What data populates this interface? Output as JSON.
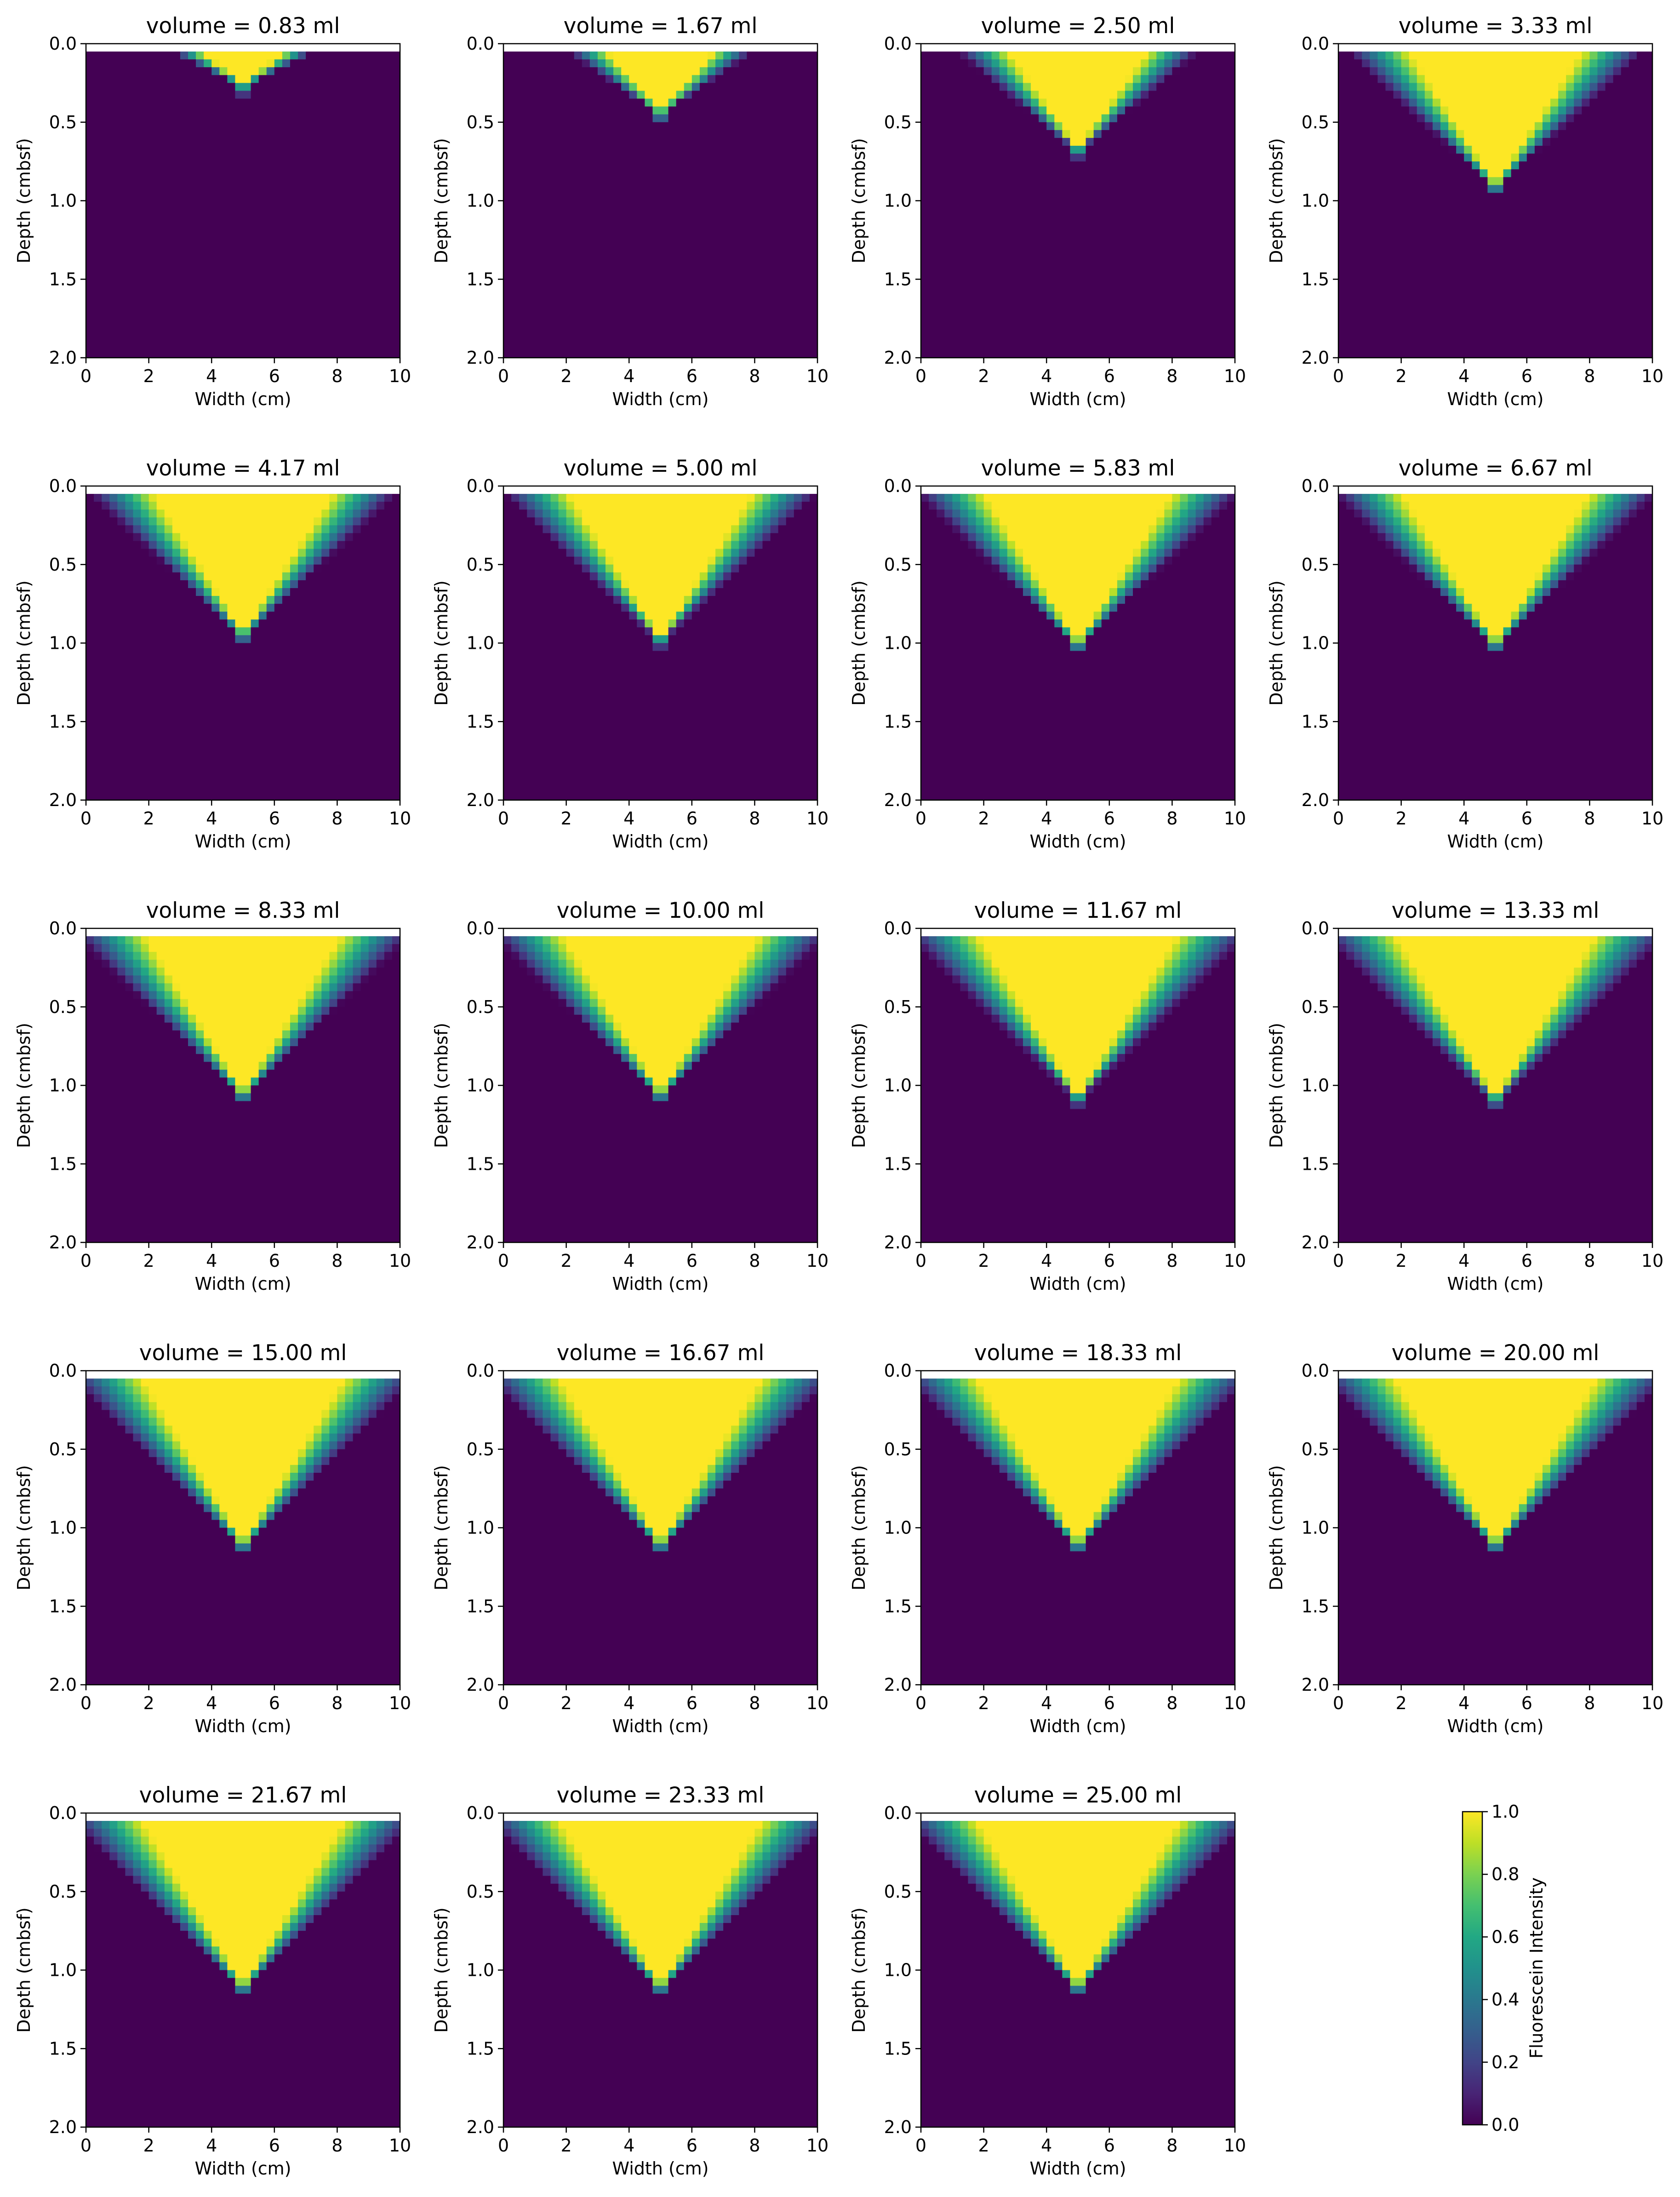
{
  "figure": {
    "colormap": "viridis",
    "colorbar": {
      "label": "Fluorescein Intensity",
      "range": [
        0.0,
        1.0
      ],
      "ticks": [
        "0.0",
        "0.2",
        "0.4",
        "0.6",
        "0.8",
        "1.0"
      ]
    }
  },
  "chart_data": {
    "type": "heatmap",
    "shared_axes": {
      "xlabel": "Width (cm)",
      "ylabel": "Depth (cmbsf)",
      "xlim": [
        0,
        10
      ],
      "ylim": [
        2.0,
        0.0
      ],
      "xticks": [
        "0",
        "2",
        "4",
        "6",
        "8",
        "10"
      ],
      "yticks": [
        "0.0",
        "0.5",
        "1.0",
        "1.5",
        "2.0"
      ]
    },
    "panels": [
      {
        "title": "volume = 0.83 ml",
        "volume": 0.83,
        "plume_depth": 0.25
      },
      {
        "title": "volume = 1.67 ml",
        "volume": 1.67,
        "plume_depth": 0.42
      },
      {
        "title": "volume = 2.50 ml",
        "volume": 2.5,
        "plume_depth": 0.65
      },
      {
        "title": "volume = 3.33 ml",
        "volume": 3.33,
        "plume_depth": 0.88
      },
      {
        "title": "volume = 4.17 ml",
        "volume": 4.17,
        "plume_depth": 0.92
      },
      {
        "title": "volume = 5.00 ml",
        "volume": 5.0,
        "plume_depth": 0.95
      },
      {
        "title": "volume = 5.83 ml",
        "volume": 5.83,
        "plume_depth": 0.98
      },
      {
        "title": "volume = 6.67 ml",
        "volume": 6.67,
        "plume_depth": 0.98
      },
      {
        "title": "volume = 8.33 ml",
        "volume": 8.33,
        "plume_depth": 1.03
      },
      {
        "title": "volume = 10.00 ml",
        "volume": 10.0,
        "plume_depth": 1.03
      },
      {
        "title": "volume = 11.67 ml",
        "volume": 11.67,
        "plume_depth": 1.05
      },
      {
        "title": "volume = 13.33 ml",
        "volume": 13.33,
        "plume_depth": 1.06
      },
      {
        "title": "volume = 15.00 ml",
        "volume": 15.0,
        "plume_depth": 1.08
      },
      {
        "title": "volume = 16.67 ml",
        "volume": 16.67,
        "plume_depth": 1.08
      },
      {
        "title": "volume = 18.33 ml",
        "volume": 18.33,
        "plume_depth": 1.08
      },
      {
        "title": "volume = 20.00 ml",
        "volume": 20.0,
        "plume_depth": 1.08
      },
      {
        "title": "volume = 21.67 ml",
        "volume": 21.67,
        "plume_depth": 1.08
      },
      {
        "title": "volume = 23.33 ml",
        "volume": 23.33,
        "plume_depth": 1.08
      },
      {
        "title": "volume = 25.00 ml",
        "volume": 25.0,
        "plume_depth": 1.08
      }
    ]
  }
}
